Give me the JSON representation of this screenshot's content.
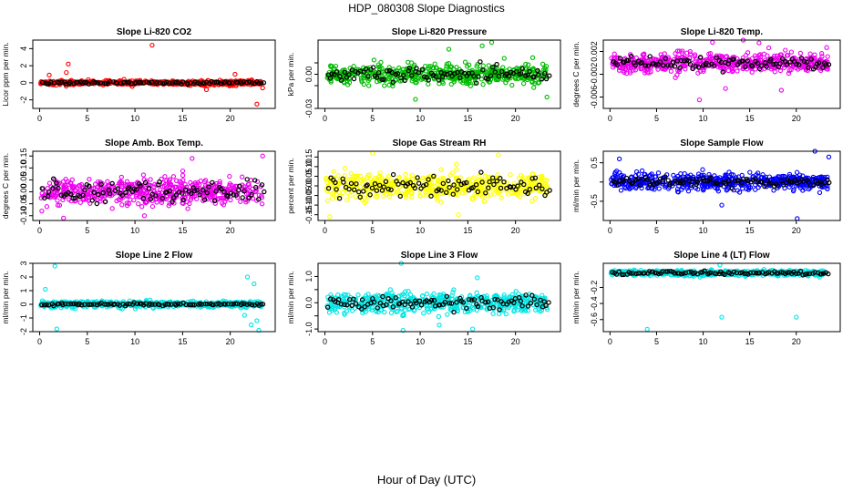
{
  "figure": {
    "title": "HDP_080308  Slope Diagnostics",
    "xlabel": "Hour of Day (UTC)"
  },
  "chart_data": [
    {
      "type": "scatter",
      "title": "Slope Li-820 CO2",
      "ylabel": "Licor ppm per min.",
      "xlim": [
        0,
        24
      ],
      "ylim": [
        -3,
        5
      ],
      "yticks": [
        -2,
        0,
        2,
        4
      ],
      "xticks": [
        0,
        5,
        10,
        15,
        20
      ],
      "color": "#ff0000",
      "center": 0.0,
      "spread": 0.25,
      "black_spread": 0.15,
      "outliers": [
        [
          3.0,
          2.2
        ],
        [
          2.8,
          1.2
        ],
        [
          11.8,
          4.4
        ],
        [
          20.5,
          1.0
        ],
        [
          22.8,
          -2.5
        ],
        [
          1.0,
          0.9
        ],
        [
          17.5,
          -0.8
        ],
        [
          23.4,
          -0.6
        ]
      ]
    },
    {
      "type": "scatter",
      "title": "Slope Li-820 Pressure",
      "ylabel": "kPa per min.",
      "xlim": [
        0,
        24
      ],
      "ylim": [
        -0.03,
        0.03
      ],
      "yticks": [
        -0.03,
        -0.01,
        0.0,
        0.01
      ],
      "yticklabels": [
        "-0.03",
        "",
        "0.00",
        ""
      ],
      "xticks": [
        0,
        5,
        10,
        15,
        20
      ],
      "color": "#00bb00",
      "center": 0.0,
      "spread": 0.008,
      "black_spread": 0.006,
      "outliers": [
        [
          16.5,
          0.025
        ],
        [
          17.5,
          0.028
        ],
        [
          9.5,
          -0.022
        ],
        [
          23.3,
          -0.02
        ],
        [
          13.0,
          0.022
        ]
      ]
    },
    {
      "type": "scatter",
      "title": "Slope Li-820 Temp.",
      "ylabel": "degrees C per min.",
      "xlim": [
        0,
        24
      ],
      "ylim": [
        -0.008,
        0.004
      ],
      "yticks": [
        -0.006,
        -0.002,
        0.002
      ],
      "yticklabels": [
        "-0.006",
        "-0.002",
        "0.002"
      ],
      "xticks": [
        0,
        5,
        10,
        15,
        20
      ],
      "color": "#ee00ee",
      "center": 0.0,
      "spread": 0.0015,
      "black_spread": 0.001,
      "outliers": [
        [
          9.6,
          -0.0065
        ],
        [
          14.3,
          0.0042
        ],
        [
          12.4,
          -0.0045
        ],
        [
          18.4,
          -0.0048
        ],
        [
          16.0,
          0.0035
        ],
        [
          11.0,
          0.0036
        ]
      ]
    },
    {
      "type": "scatter",
      "title": "Slope Amb. Box Temp.",
      "ylabel": "degrees C per min.",
      "xlim": [
        0,
        24
      ],
      "ylim": [
        -0.12,
        0.17
      ],
      "yticks": [
        -0.1,
        -0.05,
        0.0,
        0.05,
        0.1,
        0.15
      ],
      "yticklabels": [
        "-0.10",
        "-0.05",
        "0.00",
        "0.05",
        "0.10",
        "0.15"
      ],
      "xticks": [
        0,
        5,
        10,
        15,
        20
      ],
      "color": "#ee00ee",
      "center": 0.0,
      "spread": 0.05,
      "black_spread": 0.04,
      "outliers": [
        [
          23.4,
          0.15
        ],
        [
          2.5,
          -0.11
        ],
        [
          11.0,
          -0.1
        ],
        [
          16.0,
          0.14
        ]
      ]
    },
    {
      "type": "scatter",
      "title": "Slope Gas Stream RH",
      "ylabel": "percent per min.",
      "xlim": [
        0,
        24
      ],
      "ylim": [
        -0.18,
        0.18
      ],
      "yticks": [
        -0.15,
        -0.1,
        -0.05,
        0.0,
        0.05,
        0.1,
        0.15
      ],
      "yticklabels": [
        "-0.15",
        "-0.10",
        "-0.05",
        "0.00",
        "0.05",
        "0.10",
        "0.15"
      ],
      "xticks": [
        0,
        5,
        10,
        15,
        20
      ],
      "color": "#ffff00",
      "center": 0.0,
      "spread": 0.06,
      "black_spread": 0.05,
      "outliers": [
        [
          5.0,
          0.17
        ],
        [
          0.5,
          -0.16
        ],
        [
          14.0,
          -0.15
        ],
        [
          18.2,
          0.16
        ]
      ]
    },
    {
      "type": "scatter",
      "title": "Slope Sample Flow",
      "ylabel": "ml/min per min.",
      "xlim": [
        0,
        24
      ],
      "ylim": [
        -1.0,
        0.8
      ],
      "yticks": [
        -0.5,
        0.0,
        0.5
      ],
      "yticklabels": [
        "-0.5",
        "",
        "0.5"
      ],
      "xticks": [
        0,
        5,
        10,
        15,
        20
      ],
      "color": "#0000ff",
      "center": 0.0,
      "spread": 0.2,
      "black_spread": 0.12,
      "outliers": [
        [
          20.1,
          -0.95
        ],
        [
          22.0,
          0.8
        ],
        [
          1.0,
          0.6
        ],
        [
          12.0,
          -0.6
        ],
        [
          23.5,
          0.65
        ]
      ]
    },
    {
      "type": "scatter",
      "title": "Slope Line 2 Flow",
      "ylabel": "ml/min per min.",
      "xlim": [
        0,
        24
      ],
      "ylim": [
        -2.0,
        3.0
      ],
      "yticks": [
        -2,
        -1,
        0,
        1,
        2,
        3
      ],
      "xticks": [
        0,
        5,
        10,
        15,
        20
      ],
      "color": "#00e5e5",
      "center": 0.0,
      "spread": 0.2,
      "black_spread": 0.1,
      "outliers": [
        [
          1.6,
          2.8
        ],
        [
          1.8,
          -1.8
        ],
        [
          21.8,
          2.0
        ],
        [
          22.2,
          -1.5
        ],
        [
          22.8,
          -1.2
        ],
        [
          23.0,
          -1.9
        ],
        [
          0.6,
          1.1
        ],
        [
          22.5,
          1.5
        ],
        [
          21.5,
          -0.8
        ]
      ]
    },
    {
      "type": "scatter",
      "title": "Slope Line 3 Flow",
      "ylabel": "ml/min per min.",
      "xlim": [
        0,
        24
      ],
      "ylim": [
        -1.1,
        1.5
      ],
      "yticks": [
        -1.0,
        -0.5,
        0.0,
        0.5,
        1.0
      ],
      "yticklabels": [
        "-1.0",
        "",
        "0.0",
        "",
        "1.0"
      ],
      "xticks": [
        0,
        5,
        10,
        15,
        20
      ],
      "color": "#00e5e5",
      "center": 0.0,
      "spread": 0.35,
      "black_spread": 0.25,
      "outliers": [
        [
          8.0,
          1.5
        ],
        [
          8.2,
          -1.05
        ],
        [
          15.5,
          -1.0
        ],
        [
          16.0,
          0.95
        ],
        [
          12.0,
          -0.85
        ]
      ]
    },
    {
      "type": "scatter",
      "title": "Slope Line 4 (LT) Flow",
      "ylabel": "ml/min per min.",
      "xlim": [
        0,
        24
      ],
      "ylim": [
        -0.75,
        0.1
      ],
      "yticks": [
        -0.6,
        -0.4,
        -0.2
      ],
      "yticklabels": [
        "-0.6",
        "-0.4",
        "-0.2"
      ],
      "xticks": [
        0,
        5,
        10,
        15,
        20
      ],
      "color": "#00e5e5",
      "center": -0.02,
      "spread": 0.03,
      "black_spread": 0.02,
      "outliers": [
        [
          4.0,
          -0.72
        ],
        [
          12.0,
          -0.57
        ],
        [
          20.0,
          -0.57
        ],
        [
          11.8,
          0.08
        ]
      ]
    }
  ]
}
